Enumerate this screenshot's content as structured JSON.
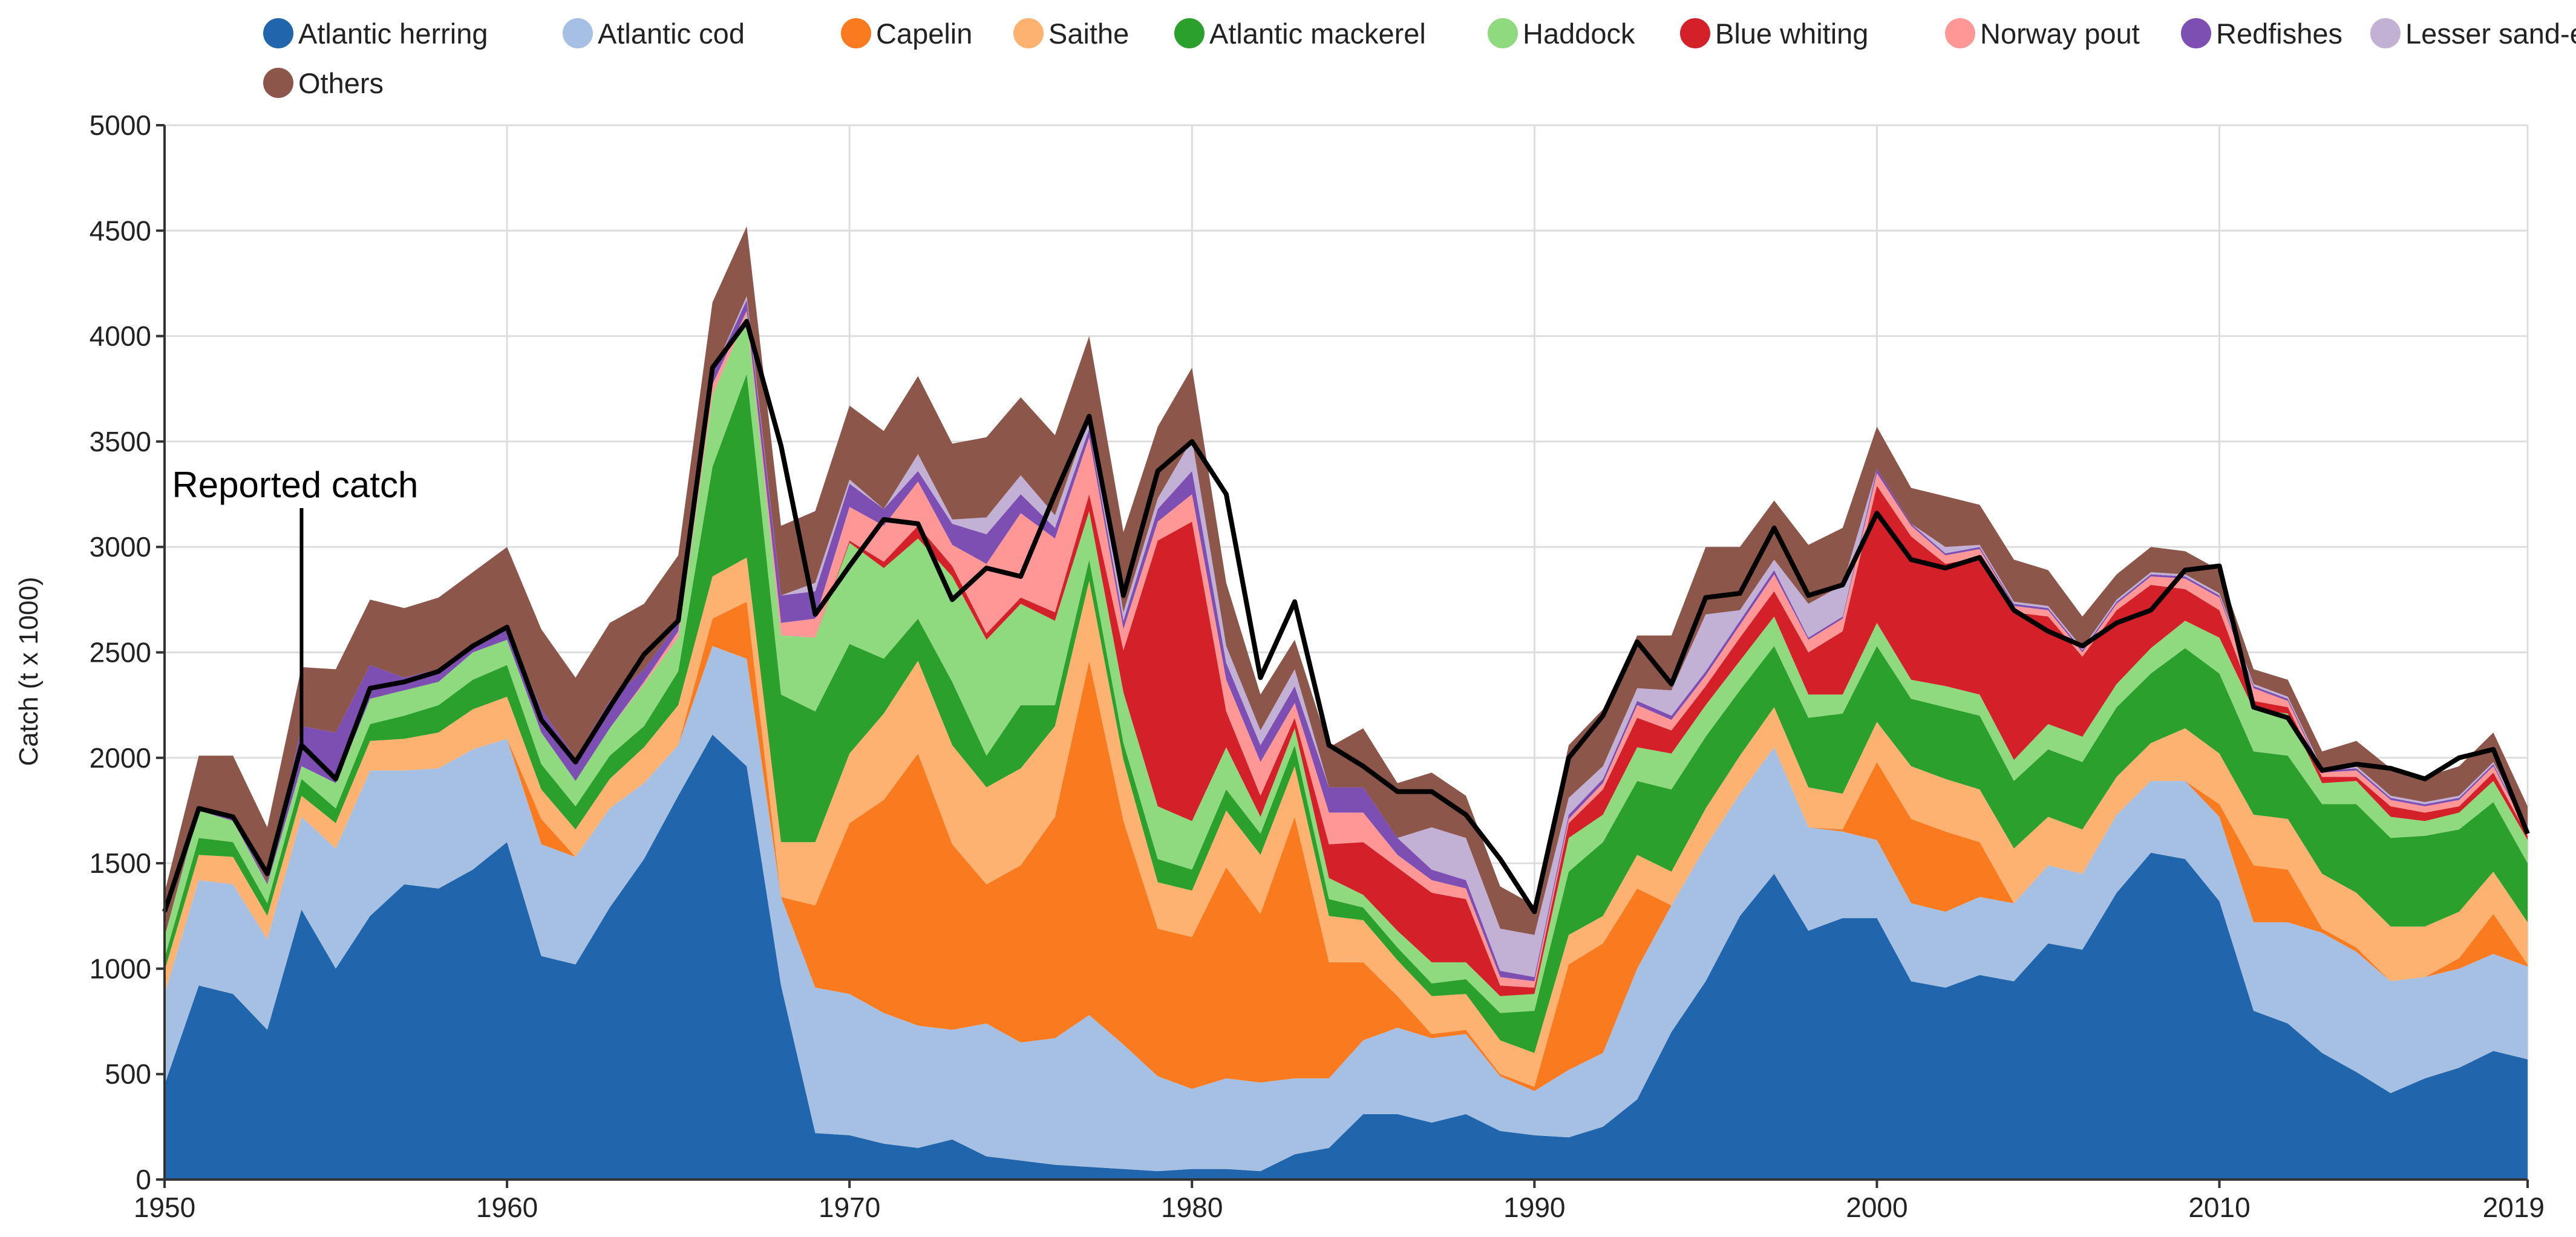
{
  "chart_data": {
    "type": "area",
    "stacked": true,
    "title": "",
    "xlabel": "",
    "ylabel": "Catch (t x 1000)",
    "xlim": [
      1950,
      2019
    ],
    "ylim": [
      0,
      5000
    ],
    "x_ticks": [
      1950,
      1960,
      1970,
      1980,
      1990,
      2000,
      2010,
      2019
    ],
    "y_ticks": [
      0,
      500,
      1000,
      1500,
      2000,
      2500,
      3000,
      3500,
      4000,
      4500,
      5000
    ],
    "grid": true,
    "legend_position": "top-left",
    "x": [
      1950,
      1951,
      1952,
      1953,
      1954,
      1955,
      1956,
      1957,
      1958,
      1959,
      1960,
      1961,
      1962,
      1963,
      1964,
      1965,
      1966,
      1967,
      1968,
      1969,
      1970,
      1971,
      1972,
      1973,
      1974,
      1975,
      1976,
      1977,
      1978,
      1979,
      1980,
      1981,
      1982,
      1983,
      1984,
      1985,
      1986,
      1987,
      1988,
      1989,
      1990,
      1991,
      1992,
      1993,
      1994,
      1995,
      1996,
      1997,
      1998,
      1999,
      2000,
      2001,
      2002,
      2003,
      2004,
      2005,
      2006,
      2007,
      2008,
      2009,
      2010,
      2011,
      2012,
      2013,
      2014,
      2015,
      2016,
      2017,
      2018,
      2019
    ],
    "series": [
      {
        "name": "Atlantic herring",
        "color": "#2166ac",
        "values": [
          450,
          920,
          880,
          710,
          1280,
          1000,
          1250,
          1400,
          1380,
          1470,
          1600,
          1060,
          1020,
          1290,
          1520,
          1820,
          2110,
          1960,
          920,
          220,
          210,
          170,
          150,
          190,
          110,
          90,
          70,
          60,
          50,
          40,
          50,
          50,
          40,
          120,
          150,
          310,
          310,
          270,
          310,
          230,
          210,
          200,
          250,
          380,
          700,
          940,
          1250,
          1450,
          1180,
          1240,
          1240,
          940,
          910,
          970,
          940,
          1120,
          1090,
          1360,
          1550,
          1520,
          1320,
          800,
          740,
          600,
          510,
          410,
          480,
          530,
          610,
          570
        ]
      },
      {
        "name": "Atlantic cod",
        "color": "#a6c0e3",
        "values": [
          430,
          500,
          520,
          430,
          440,
          570,
          690,
          540,
          570,
          570,
          490,
          530,
          510,
          470,
          360,
          240,
          420,
          510,
          420,
          690,
          670,
          620,
          580,
          520,
          630,
          560,
          600,
          720,
          590,
          450,
          380,
          430,
          420,
          360,
          330,
          350,
          410,
          400,
          380,
          260,
          210,
          320,
          350,
          620,
          600,
          640,
          580,
          600,
          490,
          410,
          370,
          370,
          360,
          370,
          370,
          370,
          360,
          370,
          340,
          370,
          400,
          420,
          480,
          570,
          570,
          530,
          480,
          470,
          460,
          440
        ]
      },
      {
        "name": "Capelin",
        "color": "#f97a1f",
        "values": [
          0,
          0,
          0,
          0,
          0,
          0,
          0,
          0,
          0,
          0,
          0,
          120,
          0,
          0,
          0,
          0,
          130,
          270,
          0,
          390,
          810,
          1010,
          1290,
          880,
          660,
          840,
          1050,
          1680,
          1060,
          700,
          720,
          1000,
          800,
          1240,
          550,
          370,
          150,
          20,
          20,
          10,
          20,
          500,
          520,
          380,
          0,
          0,
          0,
          0,
          0,
          10,
          370,
          400,
          380,
          260,
          0,
          0,
          0,
          0,
          0,
          0,
          60,
          270,
          250,
          20,
          20,
          0,
          0,
          50,
          190,
          10
        ]
      },
      {
        "name": "Saithe",
        "color": "#fdb271",
        "values": [
          110,
          120,
          130,
          110,
          100,
          120,
          140,
          150,
          170,
          190,
          200,
          140,
          130,
          140,
          170,
          190,
          200,
          210,
          260,
          300,
          330,
          410,
          440,
          470,
          460,
          460,
          430,
          380,
          290,
          220,
          220,
          270,
          280,
          240,
          220,
          200,
          170,
          180,
          170,
          160,
          160,
          140,
          130,
          160,
          160,
          180,
          180,
          190,
          190,
          170,
          190,
          250,
          250,
          250,
          260,
          230,
          210,
          180,
          180,
          250,
          240,
          240,
          240,
          260,
          260,
          260,
          240,
          220,
          200,
          200
        ]
      },
      {
        "name": "Atlantic mackerel",
        "color": "#2ca02c",
        "values": [
          60,
          80,
          70,
          60,
          80,
          70,
          80,
          110,
          130,
          140,
          150,
          120,
          110,
          110,
          100,
          160,
          520,
          870,
          700,
          620,
          520,
          260,
          200,
          300,
          150,
          300,
          100,
          100,
          80,
          110,
          100,
          100,
          100,
          100,
          80,
          60,
          60,
          60,
          70,
          130,
          200,
          300,
          350,
          350,
          390,
          340,
          310,
          290,
          330,
          380,
          360,
          320,
          340,
          350,
          320,
          320,
          320,
          330,
          330,
          380,
          380,
          300,
          300,
          330,
          420,
          420,
          430,
          390,
          330,
          280
        ]
      },
      {
        "name": "Haddock",
        "color": "#8fd97f",
        "values": [
          100,
          130,
          100,
          90,
          60,
          120,
          120,
          120,
          110,
          130,
          120,
          150,
          120,
          130,
          200,
          160,
          340,
          280,
          280,
          350,
          480,
          430,
          380,
          500,
          550,
          480,
          400,
          230,
          240,
          250,
          230,
          200,
          80,
          80,
          100,
          60,
          80,
          100,
          80,
          80,
          80,
          160,
          130,
          160,
          170,
          150,
          140,
          140,
          110,
          90,
          110,
          90,
          100,
          100,
          100,
          120,
          120,
          110,
          120,
          130,
          170,
          200,
          200,
          100,
          110,
          100,
          70,
          80,
          100,
          110
        ]
      },
      {
        "name": "Blue whiting",
        "color": "#d42129",
        "values": [
          0,
          0,
          0,
          0,
          0,
          0,
          0,
          0,
          0,
          0,
          0,
          0,
          0,
          0,
          0,
          0,
          0,
          0,
          0,
          0,
          10,
          30,
          60,
          50,
          30,
          30,
          40,
          80,
          200,
          1260,
          1420,
          170,
          100,
          50,
          160,
          250,
          300,
          330,
          300,
          50,
          30,
          70,
          120,
          140,
          110,
          90,
          110,
          120,
          200,
          300,
          650,
          680,
          580,
          650,
          700,
          510,
          380,
          350,
          300,
          150,
          130,
          40,
          30,
          30,
          20,
          50,
          40,
          30,
          40,
          20
        ]
      },
      {
        "name": "Norway pout",
        "color": "#ff9796",
        "values": [
          0,
          0,
          0,
          0,
          0,
          0,
          0,
          0,
          0,
          0,
          0,
          0,
          0,
          0,
          10,
          30,
          50,
          20,
          60,
          90,
          160,
          170,
          210,
          100,
          330,
          400,
          350,
          270,
          100,
          90,
          130,
          150,
          160,
          70,
          150,
          140,
          60,
          60,
          50,
          40,
          30,
          20,
          30,
          60,
          50,
          50,
          60,
          80,
          60,
          60,
          60,
          50,
          40,
          40,
          30,
          30,
          20,
          30,
          40,
          50,
          60,
          60,
          30,
          20,
          30,
          30,
          30,
          30,
          30,
          20
        ]
      },
      {
        "name": "Redfishes",
        "color": "#7e4fb3",
        "values": [
          0,
          10,
          20,
          10,
          190,
          240,
          160,
          60,
          60,
          20,
          60,
          110,
          110,
          130,
          60,
          40,
          50,
          50,
          130,
          130,
          110,
          80,
          50,
          100,
          140,
          90,
          50,
          40,
          40,
          60,
          110,
          80,
          80,
          80,
          120,
          120,
          80,
          50,
          40,
          30,
          20,
          20,
          20,
          20,
          20,
          20,
          20,
          20,
          10,
          10,
          20,
          10,
          10,
          10,
          10,
          10,
          10,
          10,
          10,
          10,
          10,
          10,
          10,
          10,
          10,
          10,
          10,
          10,
          10,
          10
        ]
      },
      {
        "name": "Lesser sand-eel",
        "color": "#c3b0d5",
        "values": [
          0,
          0,
          0,
          0,
          0,
          0,
          0,
          0,
          0,
          0,
          0,
          0,
          0,
          0,
          0,
          0,
          0,
          20,
          0,
          40,
          20,
          0,
          80,
          20,
          80,
          90,
          60,
          60,
          40,
          50,
          150,
          80,
          70,
          80,
          0,
          0,
          0,
          200,
          200,
          200,
          200,
          80,
          60,
          60,
          120,
          270,
          50,
          50,
          160,
          150,
          0,
          0,
          30,
          10,
          10,
          10,
          10,
          10,
          10,
          10,
          10,
          10,
          10,
          10,
          10,
          10,
          10,
          10,
          10,
          10
        ]
      },
      {
        "name": "Others",
        "color": "#8c564b",
        "values": [
          210,
          250,
          290,
          260,
          280,
          300,
          310,
          330,
          340,
          360,
          380,
          380,
          380,
          370,
          310,
          320,
          340,
          330,
          330,
          340,
          350,
          370,
          370,
          360,
          380,
          370,
          380,
          380,
          380,
          340,
          340,
          300,
          170,
          140,
          190,
          280,
          260,
          260,
          200,
          200,
          140,
          250,
          270,
          250,
          260,
          320,
          300,
          280,
          280,
          270,
          200,
          170,
          240,
          190,
          200,
          170,
          150,
          120,
          120,
          110,
          110,
          70,
          80,
          80,
          120,
          130,
          120,
          140,
          140,
          100
        ]
      },
      {
        "name": "Reported catch",
        "color": "#000000",
        "type": "line",
        "values": [
          1270,
          1760,
          1720,
          1450,
          2060,
          1900,
          2330,
          2360,
          2410,
          2530,
          2620,
          2180,
          1980,
          2240,
          2490,
          2650,
          3850,
          4070,
          3480,
          2680,
          2910,
          3130,
          3110,
          2750,
          2900,
          2860,
          3250,
          3620,
          2770,
          3360,
          3500,
          3250,
          2380,
          2740,
          2060,
          1960,
          1840,
          1840,
          1730,
          1520,
          1270,
          2000,
          2200,
          2550,
          2350,
          2760,
          2780,
          3090,
          2770,
          2820,
          3160,
          2940,
          2900,
          2950,
          2700,
          2600,
          2530,
          2640,
          2700,
          2890,
          2910,
          2240,
          2190,
          1940,
          1970,
          1950,
          1900,
          2000,
          2040,
          1640
        ]
      }
    ],
    "annotations": [
      {
        "text": "Reported catch",
        "x": 1954,
        "y": 2050
      }
    ]
  }
}
